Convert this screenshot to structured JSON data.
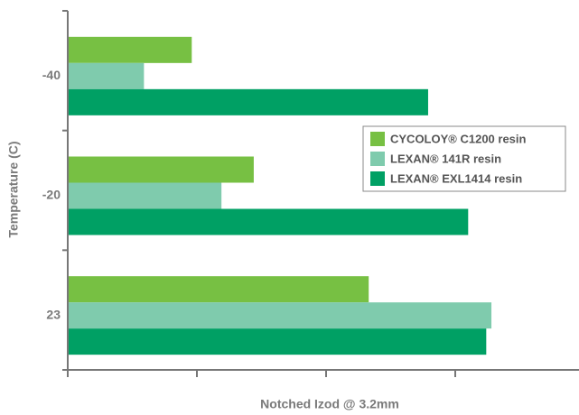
{
  "chart_data": {
    "type": "hbar",
    "categories": [
      "-40",
      "-20",
      "23"
    ],
    "series": [
      {
        "name": "CYCOLOY® C1200 resin",
        "color": "#77c043",
        "values": [
          0.96,
          1.44,
          2.33
        ]
      },
      {
        "name": "LEXAN® 141R resin",
        "color": "#7fcbad",
        "values": [
          0.59,
          1.19,
          3.28
        ]
      },
      {
        "name": "LEXAN® EXL1414 resin",
        "color": "#00a064",
        "values": [
          2.79,
          3.1,
          3.24
        ]
      }
    ],
    "xlabel": "Notched Izod @ 3.2mm",
    "ylabel": "Temperature (C)",
    "xlim": [
      0,
      4
    ],
    "xticks": [
      0,
      1,
      2,
      3
    ],
    "legend": "right"
  }
}
